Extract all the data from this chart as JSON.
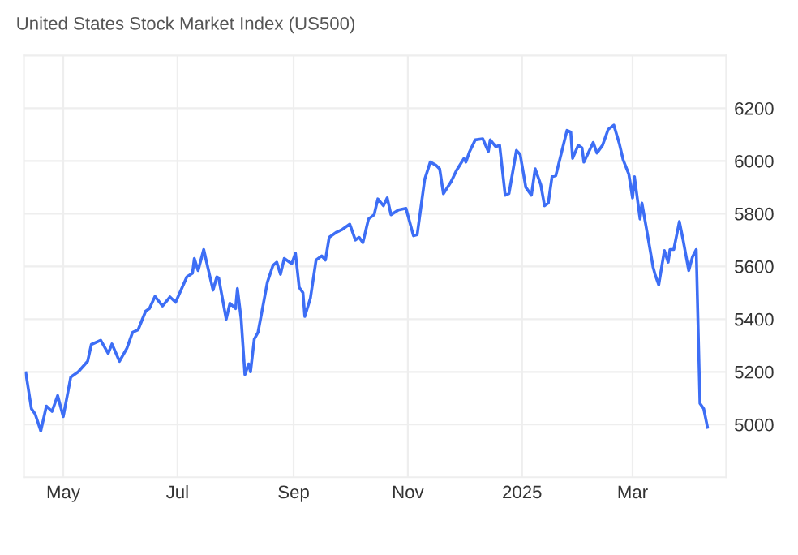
{
  "chart_data": {
    "type": "line",
    "title": "United States Stock Market Index (US500)",
    "x": [
      "2024-04-11",
      "2024-04-14",
      "2024-04-16",
      "2024-04-19",
      "2024-04-22",
      "2024-04-25",
      "2024-04-28",
      "2024-05-01",
      "2024-05-05",
      "2024-05-09",
      "2024-05-12",
      "2024-05-14",
      "2024-05-16",
      "2024-05-21",
      "2024-05-25",
      "2024-05-27",
      "2024-05-31",
      "2024-06-04",
      "2024-06-07",
      "2024-06-10",
      "2024-06-14",
      "2024-06-16",
      "2024-06-19",
      "2024-06-23",
      "2024-06-27",
      "2024-06-30",
      "2024-07-06",
      "2024-07-09",
      "2024-07-10",
      "2024-07-12",
      "2024-07-15",
      "2024-07-20",
      "2024-07-22",
      "2024-07-23",
      "2024-07-27",
      "2024-07-29",
      "2024-08-01",
      "2024-08-02",
      "2024-08-04",
      "2024-08-06",
      "2024-08-08",
      "2024-08-09",
      "2024-08-11",
      "2024-08-13",
      "2024-08-18",
      "2024-08-21",
      "2024-08-23",
      "2024-08-25",
      "2024-08-27",
      "2024-08-31",
      "2024-09-02",
      "2024-09-04",
      "2024-09-06",
      "2024-09-07",
      "2024-09-10",
      "2024-09-13",
      "2024-09-16",
      "2024-09-18",
      "2024-09-20",
      "2024-09-24",
      "2024-09-27",
      "2024-10-01",
      "2024-10-04",
      "2024-10-06",
      "2024-10-08",
      "2024-10-11",
      "2024-10-14",
      "2024-10-16",
      "2024-10-19",
      "2024-10-21",
      "2024-10-23",
      "2024-10-27",
      "2024-10-31",
      "2024-11-04",
      "2024-11-06",
      "2024-11-10",
      "2024-11-13",
      "2024-11-16",
      "2024-11-18",
      "2024-11-20",
      "2024-11-24",
      "2024-11-27",
      "2024-12-01",
      "2024-12-02",
      "2024-12-04",
      "2024-12-07",
      "2024-12-11",
      "2024-12-14",
      "2024-12-15",
      "2024-12-18",
      "2024-12-20",
      "2024-12-23",
      "2024-12-25",
      "2024-12-29",
      "2024-12-31",
      "2025-01-03",
      "2025-01-06",
      "2025-01-08",
      "2025-01-11",
      "2025-01-13",
      "2025-01-15",
      "2025-01-17",
      "2025-01-19",
      "2025-01-25",
      "2025-01-27",
      "2025-01-28",
      "2025-01-31",
      "2025-02-02",
      "2025-02-03",
      "2025-02-08",
      "2025-02-10",
      "2025-02-13",
      "2025-02-16",
      "2025-02-19",
      "2025-02-22",
      "2025-02-24",
      "2025-02-27",
      "2025-03-01",
      "2025-03-02",
      "2025-03-05",
      "2025-03-06",
      "2025-03-08",
      "2025-03-12",
      "2025-03-13",
      "2025-03-15",
      "2025-03-18",
      "2025-03-20",
      "2025-03-21",
      "2025-03-23",
      "2025-03-26",
      "2025-03-28",
      "2025-03-31",
      "2025-04-02",
      "2025-04-04",
      "2025-04-06",
      "2025-04-08",
      "2025-04-10"
    ],
    "series": [
      {
        "color": "#3d6ef5",
        "values": [
          5196,
          5060,
          5040,
          4976,
          5070,
          5050,
          5110,
          5030,
          5180,
          5200,
          5224,
          5240,
          5304,
          5320,
          5270,
          5306,
          5240,
          5290,
          5350,
          5360,
          5430,
          5440,
          5486,
          5450,
          5484,
          5464,
          5560,
          5574,
          5630,
          5584,
          5664,
          5510,
          5560,
          5556,
          5400,
          5460,
          5440,
          5516,
          5400,
          5190,
          5230,
          5200,
          5324,
          5350,
          5540,
          5604,
          5616,
          5570,
          5630,
          5610,
          5650,
          5520,
          5500,
          5410,
          5480,
          5624,
          5640,
          5624,
          5710,
          5730,
          5740,
          5760,
          5700,
          5710,
          5690,
          5780,
          5796,
          5856,
          5830,
          5860,
          5796,
          5814,
          5820,
          5716,
          5720,
          5930,
          5996,
          5984,
          5970,
          5876,
          5920,
          5964,
          6010,
          5996,
          6036,
          6080,
          6084,
          6036,
          6080,
          6054,
          6060,
          5870,
          5876,
          6040,
          6024,
          5900,
          5870,
          5970,
          5910,
          5830,
          5840,
          5940,
          5944,
          6116,
          6110,
          6010,
          6060,
          6050,
          5996,
          6070,
          6030,
          6060,
          6120,
          6136,
          6064,
          6004,
          5950,
          5860,
          5940,
          5780,
          5840,
          5760,
          5596,
          5570,
          5530,
          5660,
          5616,
          5664,
          5664,
          5770,
          5700,
          5584,
          5636,
          5664,
          5080,
          5060,
          4990
        ]
      }
    ],
    "xlim": [
      "2024-04-10",
      "2025-04-20"
    ],
    "xticks": [
      {
        "value": "2024-05-01",
        "label": "May"
      },
      {
        "value": "2024-07-01",
        "label": "Jul"
      },
      {
        "value": "2024-09-01",
        "label": "Sep"
      },
      {
        "value": "2024-11-01",
        "label": "Nov"
      },
      {
        "value": "2025-01-01",
        "label": "2025"
      },
      {
        "value": "2025-03-01",
        "label": "Mar"
      }
    ],
    "ylim": [
      4800,
      6400
    ],
    "yticks": [
      5000,
      5200,
      5400,
      5600,
      5800,
      6000,
      6200
    ],
    "grid": true,
    "marker": "none",
    "line_style": "solid"
  }
}
